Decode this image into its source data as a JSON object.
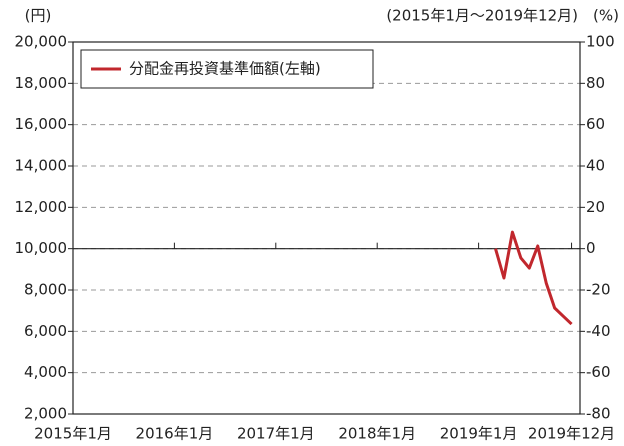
{
  "chart_data": {
    "type": "line",
    "y_unit": "(円)",
    "period": "(2015年1月～2019年12月)",
    "y2_unit": "(%)",
    "xlim": [
      0,
      60
    ],
    "xticks": [
      {
        "value": 0,
        "label": "2015年1月"
      },
      {
        "value": 12,
        "label": "2016年1月"
      },
      {
        "value": 24,
        "label": "2017年1月"
      },
      {
        "value": 36,
        "label": "2018年1月"
      },
      {
        "value": 48,
        "label": "2019年1月"
      },
      {
        "value": 59,
        "label": "2019年12月"
      }
    ],
    "ylim": [
      2000,
      20000
    ],
    "yticks": [
      {
        "value": 2000,
        "label": "2,000"
      },
      {
        "value": 4000,
        "label": "4,000"
      },
      {
        "value": 6000,
        "label": "6,000"
      },
      {
        "value": 8000,
        "label": "8,000"
      },
      {
        "value": 10000,
        "label": "10,000"
      },
      {
        "value": 12000,
        "label": "12,000"
      },
      {
        "value": 14000,
        "label": "14,000"
      },
      {
        "value": 16000,
        "label": "16,000"
      },
      {
        "value": 18000,
        "label": "18,000"
      },
      {
        "value": 20000,
        "label": "20,000"
      }
    ],
    "y2lim": [
      -80,
      100
    ],
    "y2ticks": [
      -80,
      -60,
      -40,
      -20,
      0,
      20,
      40,
      60,
      80,
      100
    ],
    "grid": true,
    "legend": "upper left",
    "x": [
      50,
      51,
      52,
      53,
      54,
      55,
      56,
      57,
      58,
      59
    ],
    "series": [
      {
        "name": "分配金再投資基準価額(左軸)",
        "color": "#c1272d",
        "values": [
          10000,
          8580,
          10800,
          9550,
          9060,
          10130,
          8340,
          7130,
          6740,
          6350
        ]
      }
    ]
  }
}
